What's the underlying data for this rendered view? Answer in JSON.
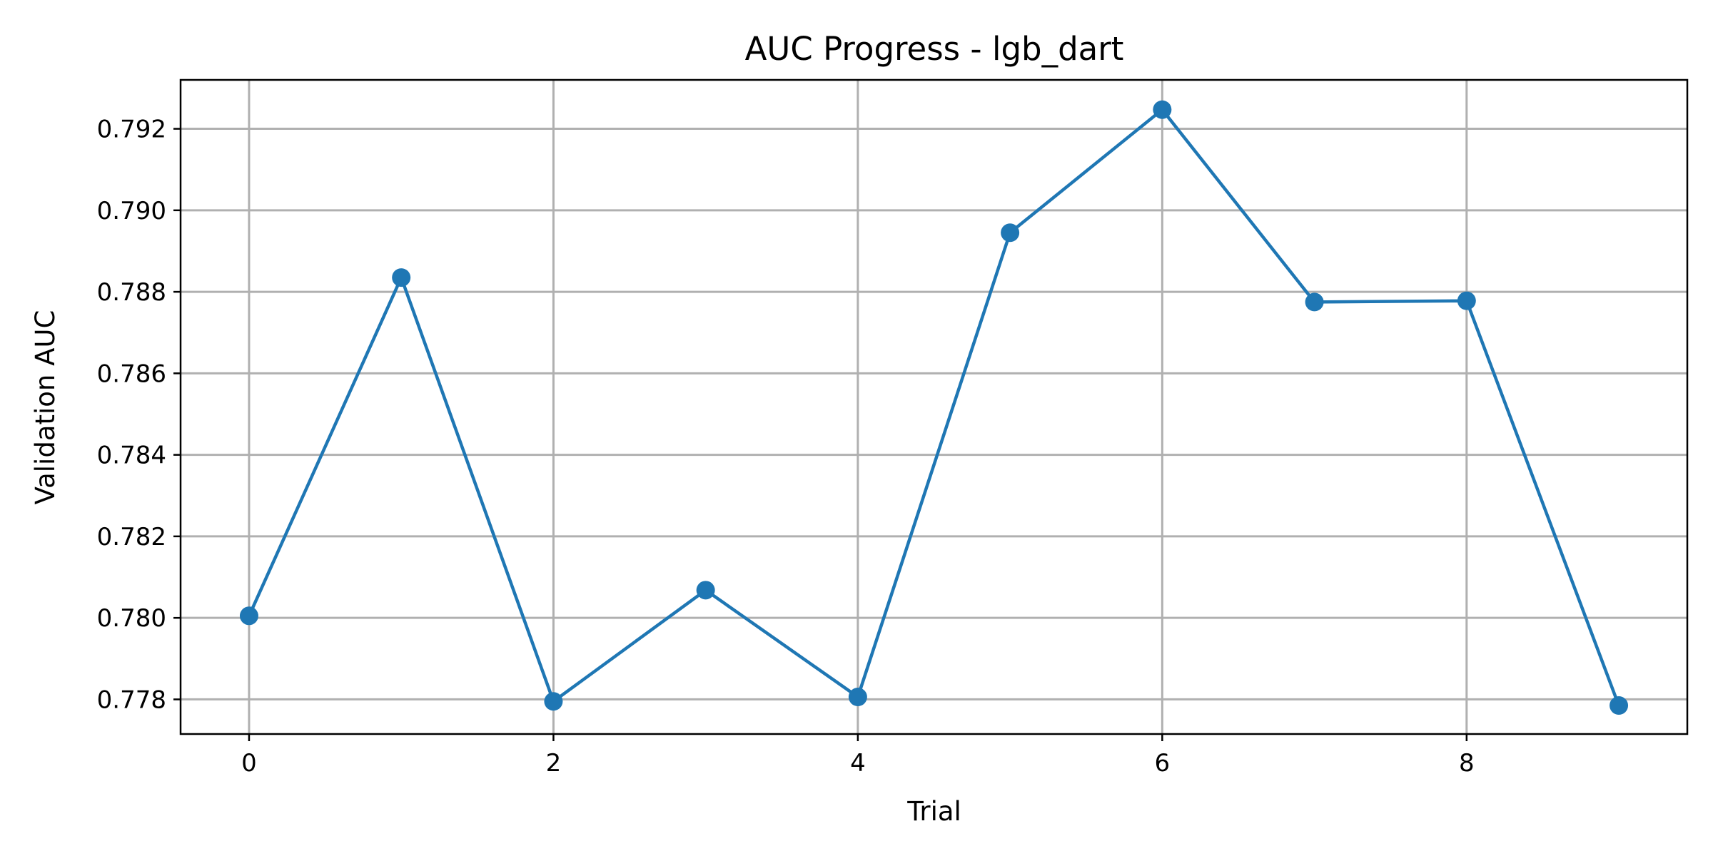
{
  "chart_data": {
    "type": "line",
    "title": "AUC Progress - lgb_dart",
    "xlabel": "Trial",
    "ylabel": "Validation AUC",
    "x": [
      0,
      1,
      2,
      3,
      4,
      5,
      6,
      7,
      8,
      9
    ],
    "series": [
      {
        "values": [
          0.78005,
          0.78835,
          0.77795,
          0.78068,
          0.77806,
          0.78945,
          0.79247,
          0.78775,
          0.78778,
          0.77785
        ],
        "color": "#1f77b4",
        "marker": "circle"
      }
    ],
    "xlim": [
      -0.45,
      9.45
    ],
    "ylim": [
      0.77715,
      0.7932
    ],
    "xticks": [
      0,
      2,
      4,
      6,
      8
    ],
    "xtick_labels": [
      "0",
      "2",
      "4",
      "6",
      "8"
    ],
    "yticks": [
      0.778,
      0.78,
      0.782,
      0.784,
      0.786,
      0.788,
      0.79,
      0.792
    ],
    "ytick_labels": [
      "0.778",
      "0.780",
      "0.782",
      "0.784",
      "0.786",
      "0.788",
      "0.790",
      "0.792"
    ],
    "grid": true,
    "legend": "none"
  }
}
